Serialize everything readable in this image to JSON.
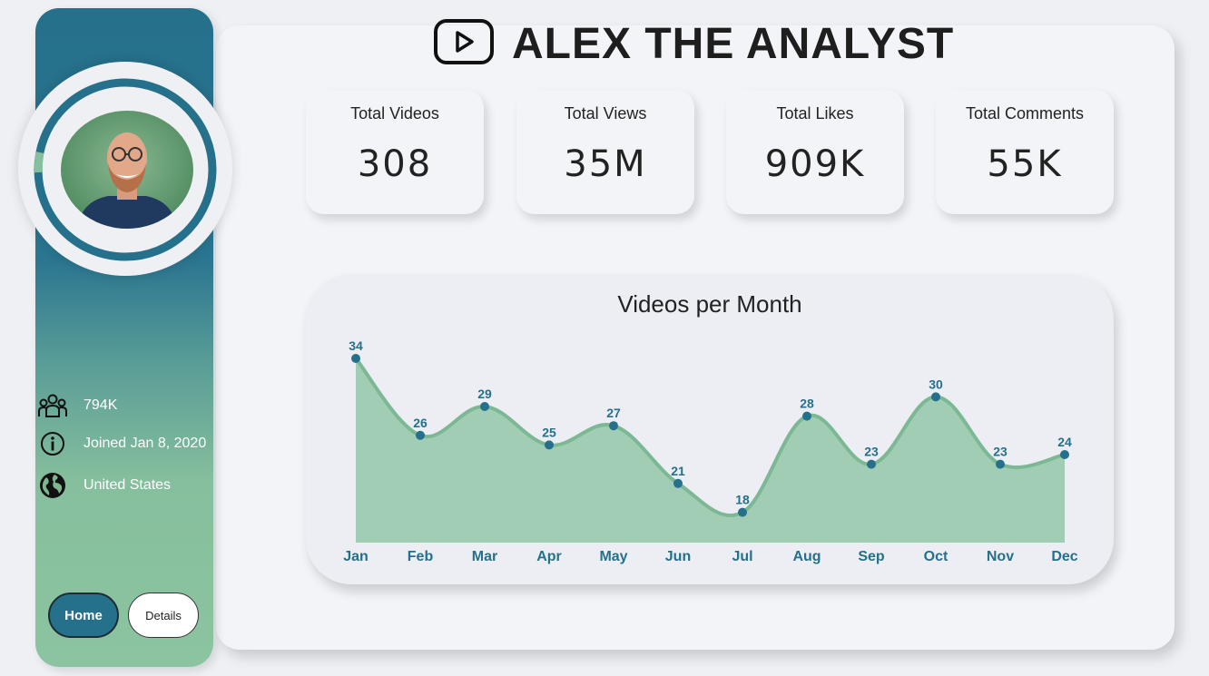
{
  "header": {
    "title": "ALEX THE ANALYST",
    "icon": "youtube-play-icon"
  },
  "kpis": [
    {
      "label": "Total Videos",
      "value": "308"
    },
    {
      "label": "Total Views",
      "value": "35M"
    },
    {
      "label": "Total Likes",
      "value": "909K"
    },
    {
      "label": "Total Comments",
      "value": "55K"
    }
  ],
  "sidebar": {
    "subscribers": "794K",
    "joined": "Joined Jan 8, 2020",
    "country": "United States",
    "nav": {
      "home": "Home",
      "details": "Details"
    }
  },
  "colors": {
    "accent": "#25708b",
    "green": "#86bf9d",
    "background": "#eef0f4"
  },
  "chart_data": {
    "type": "area",
    "title": "Videos per Month",
    "categories": [
      "Jan",
      "Feb",
      "Mar",
      "Apr",
      "May",
      "Jun",
      "Jul",
      "Aug",
      "Sep",
      "Oct",
      "Nov",
      "Dec"
    ],
    "values": [
      34,
      26,
      29,
      25,
      27,
      21,
      18,
      28,
      23,
      30,
      23,
      24
    ],
    "xlabel": "",
    "ylabel": "",
    "grid": false,
    "data_labels": true
  }
}
